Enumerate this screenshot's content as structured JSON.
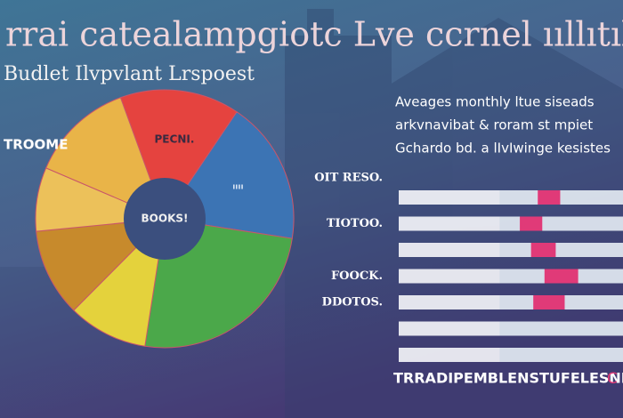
{
  "chart_data": [
    {
      "type": "pie",
      "title": "rrai catealampgiotc Lve ccrnel ııllıtılo",
      "subtitle": "Budlet Ilvpvlant Lrspoest",
      "categories": [
        "PECNI.",
        "ıııı",
        null,
        null,
        null,
        null,
        "TROOME"
      ],
      "center_label": "BOOKS!",
      "values": [
        15,
        18,
        25,
        10,
        11,
        8,
        13
      ],
      "colors": [
        "#e5433f",
        "#3c74b4",
        "#4ba84a",
        "#e4d23c",
        "#c78a2c",
        "#ecc15a",
        "#e9b448"
      ]
    },
    {
      "type": "range",
      "description": [
        "Aveages monthly ltue siseads",
        "arkvnavibat & roram st mpiet",
        "Gchardo bd. a lIvIwinge kesistes"
      ],
      "categories": [
        "OIT RESO.",
        "TIOTOO.",
        null,
        "FOOCK.",
        "DDOTOS.",
        null,
        null
      ],
      "start": [
        62,
        54,
        59,
        65,
        60,
        null,
        null
      ],
      "end": [
        72,
        64,
        70,
        80,
        74,
        null,
        null
      ],
      "xlim": [
        0,
        100
      ],
      "color": "#e03a78",
      "footer": "TRRADIPEMBLENSTUFELESNE.",
      "footer_mark": "C"
    }
  ]
}
